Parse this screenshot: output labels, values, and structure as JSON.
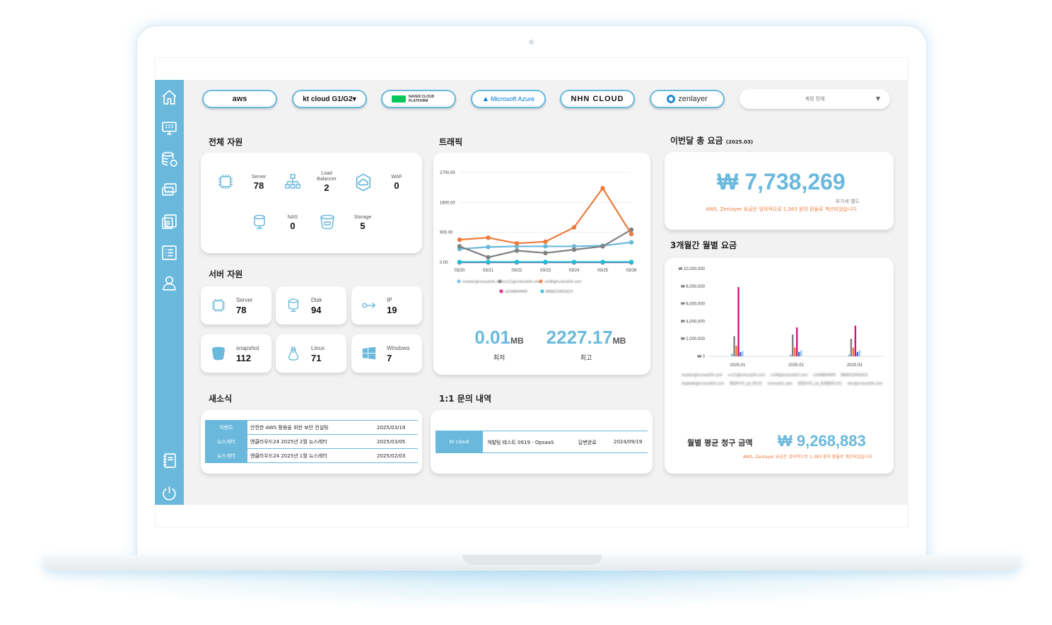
{
  "providers": [
    {
      "label": "aws",
      "color": "#222"
    },
    {
      "label": "kt cloud G1/G2▾",
      "color": "#111"
    },
    {
      "label": "NAVER CLOUD PLATFORM",
      "color": "#03c75a"
    },
    {
      "label": "Microsoft Azure",
      "color": "#0078d4"
    },
    {
      "label": "NHN CLOUD",
      "color": "#111"
    },
    {
      "label": "zenlayer",
      "color": "#333"
    }
  ],
  "account_select": {
    "value": "계정 전체"
  },
  "total_resources": {
    "title": "전체 자원",
    "items": [
      {
        "label": "Server",
        "value": "78",
        "icon": "cpu-icon"
      },
      {
        "label": "Load Balancer",
        "value": "2",
        "icon": "network-icon"
      },
      {
        "label": "WAF",
        "value": "0",
        "icon": "cloud-shield-icon"
      },
      {
        "label": "NAS",
        "value": "0",
        "icon": "database-icon"
      },
      {
        "label": "Storage",
        "value": "5",
        "icon": "bucket-icon"
      }
    ]
  },
  "server_resources": {
    "title": "서버 자원",
    "tiles": [
      {
        "label": "Server",
        "value": "78",
        "icon": "cpu-icon"
      },
      {
        "label": "Disk",
        "value": "94",
        "icon": "disk-icon"
      },
      {
        "label": "IP",
        "value": "19",
        "icon": "ip-icon"
      },
      {
        "label": "snapshot",
        "value": "112",
        "icon": "snapshot-icon"
      },
      {
        "label": "Linux",
        "value": "71",
        "icon": "linux-icon"
      },
      {
        "label": "Windows",
        "value": "7",
        "icon": "windows-icon"
      }
    ]
  },
  "news": {
    "title": "새소식",
    "rows": [
      {
        "tag": "이벤트",
        "title": "안전한 AWS 활용을 위한 보안 컨설팅",
        "date": "2025/03/19"
      },
      {
        "tag": "뉴스레터",
        "title": "엔클라우드24 2025년 2월 뉴스레터",
        "date": "2025/03/05"
      },
      {
        "tag": "뉴스레터",
        "title": "엔클라우드24 2025년 1월 뉴스레터",
        "date": "2025/02/03"
      }
    ]
  },
  "traffic": {
    "title": "트래픽",
    "min_value": "0.01",
    "min_unit": "MB",
    "min_caption": "최저",
    "max_value": "2227.17",
    "max_unit": "MB",
    "max_caption": "최고",
    "legend": [
      "master@ncloud24.com",
      "nc21@ncloud24.com",
      "nc06@ncloud24.com",
      "o104864909",
      "889023491623"
    ]
  },
  "inquiries": {
    "title": "1:1 문의 내역",
    "rows": [
      {
        "provider": "kt cloud",
        "title": "개발팀 테스트 0919 - OpsaaS",
        "status": "답변완료",
        "date": "2024/09/19"
      }
    ]
  },
  "monthly_total": {
    "title": "이번달 총 요금",
    "period": "(2025.03)",
    "amount": "₩ 7,738,269",
    "vat_note": "부가세 별도",
    "note": "AWS, Zenlayer 요금은 임의적으로 1,383 원의 환율로 계산되었습니다"
  },
  "three_month": {
    "title": "3개월간 월별 요금",
    "avg_label": "월별 평균 청구 금액",
    "avg_amount": "₩ 9,268,883",
    "note": "AWS, Zenlayer 요금은 임의적으로 1,383 원의 환율로 계산되었습니다",
    "legend": [
      "master@ncloud24.com",
      "nc21@ncloud24.com",
      "nc06@ncloud24.com",
      "o104864909",
      "889023491623",
      "nkpbebl@ncloud24.com",
      "영업부서1_jw_테스트",
      "ncloud24_aws",
      "영업부서1_jw_운영팀테스트1",
      "dev@ncloud24.com"
    ]
  },
  "colors": {
    "accent": "#6ab9dd",
    "orange": "#ec7a3c",
    "gray": "#808080",
    "magenta": "#d6157e"
  },
  "chart_data": [
    {
      "type": "line",
      "title": "",
      "x": [
        "03/20",
        "03/21",
        "03/22",
        "03/23",
        "03/24",
        "03/25",
        "03/26"
      ],
      "ylim": [
        0,
        2700
      ],
      "yticks": [
        "0.00",
        "900.00",
        "1800.00",
        "2700.00"
      ],
      "series": [
        {
          "name": "master@ncloud24.com",
          "color": "#6ab9dd",
          "values": [
            400,
            460,
            480,
            480,
            480,
            500,
            600
          ]
        },
        {
          "name": "nc21@ncloud24.com",
          "color": "#808080",
          "values": [
            480,
            150,
            350,
            280,
            380,
            480,
            980
          ]
        },
        {
          "name": "nc06@ncloud24.com",
          "color": "#ec7a3c",
          "values": [
            680,
            740,
            570,
            620,
            1050,
            2227,
            850
          ]
        },
        {
          "name": "o104864909",
          "color": "#d6157e",
          "values": [
            0,
            0,
            0,
            0,
            0,
            0,
            0
          ]
        },
        {
          "name": "889023491623",
          "color": "#1dc1d6",
          "values": [
            10,
            10,
            10,
            10,
            10,
            10,
            10
          ]
        }
      ],
      "legend_position": "bottom"
    },
    {
      "type": "bar",
      "title": "",
      "categories": [
        "2025.01",
        "2025.02",
        "2025.03"
      ],
      "ylim": [
        0,
        10000000
      ],
      "yticks": [
        "₩ 0",
        "₩ 2,000,000",
        "₩ 4,000,000",
        "₩ 6,000,000",
        "₩ 8,000,000",
        "₩ 10,000,000"
      ],
      "series": [
        {
          "name": "master@ncloud24.com",
          "color": "#6ab9dd",
          "values": [
            300000,
            200000,
            200000
          ]
        },
        {
          "name": "nc21@ncloud24.com",
          "color": "#808080",
          "values": [
            2300000,
            2500000,
            2000000
          ]
        },
        {
          "name": "nc06@ncloud24.com",
          "color": "#ec7a3c",
          "values": [
            1200000,
            1000000,
            1000000
          ]
        },
        {
          "name": "o104864909",
          "color": "#d6157e",
          "values": [
            7900000,
            3300000,
            3500000
          ]
        },
        {
          "name": "889023491623",
          "color": "#3f6fd8",
          "values": [
            500000,
            500000,
            500000
          ]
        },
        {
          "name": "dev@ncloud24.com",
          "color": "#9ec9f0",
          "values": [
            600000,
            700000,
            700000
          ]
        }
      ],
      "legend_position": "bottom"
    }
  ]
}
